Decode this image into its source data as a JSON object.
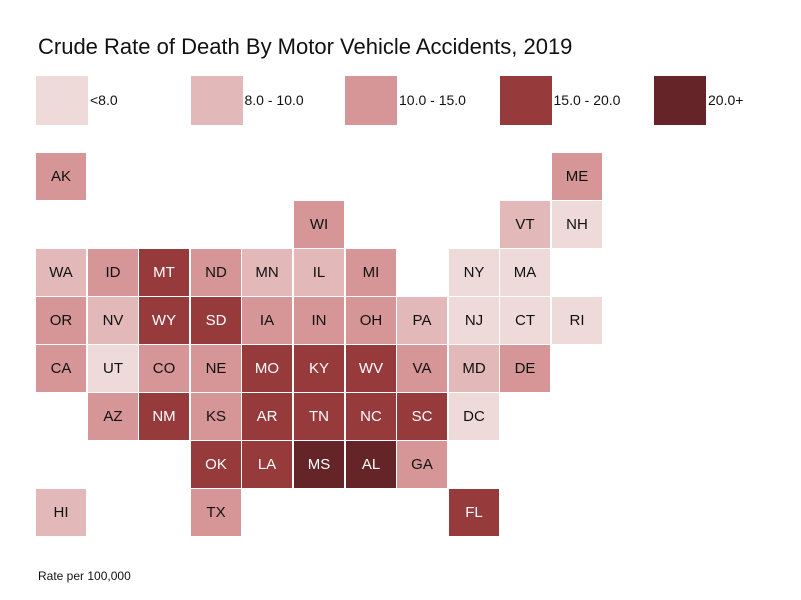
{
  "chart_data": {
    "type": "heatmap",
    "subtype": "tile-grid-map",
    "title": "Crude Rate of Death By Motor Vehicle Accidents, 2019",
    "note": "Rate per 100,000",
    "legend_position": "top",
    "bins": [
      {
        "id": "c1",
        "label": "<8.0",
        "color": "#eedad9",
        "text": "light"
      },
      {
        "id": "c2",
        "label": "8.0 - 10.0",
        "color": "#e2b8b8",
        "text": "light"
      },
      {
        "id": "c3",
        "label": "10.0 - 15.0",
        "color": "#d69596",
        "text": "light"
      },
      {
        "id": "c4",
        "label": "15.0 - 20.0",
        "color": "#963a3c",
        "text": "dark"
      },
      {
        "id": "c5",
        "label": "20.0+",
        "color": "#652528",
        "text": "dark"
      }
    ],
    "tiles": [
      {
        "state": "AK",
        "row": 0,
        "col": 0,
        "bin": "c3"
      },
      {
        "state": "ME",
        "row": 0,
        "col": 10,
        "bin": "c3"
      },
      {
        "state": "WI",
        "row": 1,
        "col": 5,
        "bin": "c3"
      },
      {
        "state": "VT",
        "row": 1,
        "col": 9,
        "bin": "c2"
      },
      {
        "state": "NH",
        "row": 1,
        "col": 10,
        "bin": "c1"
      },
      {
        "state": "WA",
        "row": 2,
        "col": 0,
        "bin": "c2"
      },
      {
        "state": "ID",
        "row": 2,
        "col": 1,
        "bin": "c3"
      },
      {
        "state": "MT",
        "row": 2,
        "col": 2,
        "bin": "c4"
      },
      {
        "state": "ND",
        "row": 2,
        "col": 3,
        "bin": "c3"
      },
      {
        "state": "MN",
        "row": 2,
        "col": 4,
        "bin": "c2"
      },
      {
        "state": "IL",
        "row": 2,
        "col": 5,
        "bin": "c2"
      },
      {
        "state": "MI",
        "row": 2,
        "col": 6,
        "bin": "c3"
      },
      {
        "state": "NY",
        "row": 2,
        "col": 8,
        "bin": "c1"
      },
      {
        "state": "MA",
        "row": 2,
        "col": 9,
        "bin": "c1"
      },
      {
        "state": "OR",
        "row": 3,
        "col": 0,
        "bin": "c3"
      },
      {
        "state": "NV",
        "row": 3,
        "col": 1,
        "bin": "c2"
      },
      {
        "state": "WY",
        "row": 3,
        "col": 2,
        "bin": "c4"
      },
      {
        "state": "SD",
        "row": 3,
        "col": 3,
        "bin": "c4"
      },
      {
        "state": "IA",
        "row": 3,
        "col": 4,
        "bin": "c3"
      },
      {
        "state": "IN",
        "row": 3,
        "col": 5,
        "bin": "c3"
      },
      {
        "state": "OH",
        "row": 3,
        "col": 6,
        "bin": "c3"
      },
      {
        "state": "PA",
        "row": 3,
        "col": 7,
        "bin": "c2"
      },
      {
        "state": "NJ",
        "row": 3,
        "col": 8,
        "bin": "c1"
      },
      {
        "state": "CT",
        "row": 3,
        "col": 9,
        "bin": "c1"
      },
      {
        "state": "RI",
        "row": 3,
        "col": 10,
        "bin": "c1"
      },
      {
        "state": "CA",
        "row": 4,
        "col": 0,
        "bin": "c3"
      },
      {
        "state": "UT",
        "row": 4,
        "col": 1,
        "bin": "c1"
      },
      {
        "state": "CO",
        "row": 4,
        "col": 2,
        "bin": "c3"
      },
      {
        "state": "NE",
        "row": 4,
        "col": 3,
        "bin": "c3"
      },
      {
        "state": "MO",
        "row": 4,
        "col": 4,
        "bin": "c4"
      },
      {
        "state": "KY",
        "row": 4,
        "col": 5,
        "bin": "c4"
      },
      {
        "state": "WV",
        "row": 4,
        "col": 6,
        "bin": "c4"
      },
      {
        "state": "VA",
        "row": 4,
        "col": 7,
        "bin": "c3"
      },
      {
        "state": "MD",
        "row": 4,
        "col": 8,
        "bin": "c2"
      },
      {
        "state": "DE",
        "row": 4,
        "col": 9,
        "bin": "c3"
      },
      {
        "state": "AZ",
        "row": 5,
        "col": 1,
        "bin": "c3"
      },
      {
        "state": "NM",
        "row": 5,
        "col": 2,
        "bin": "c4"
      },
      {
        "state": "KS",
        "row": 5,
        "col": 3,
        "bin": "c3"
      },
      {
        "state": "AR",
        "row": 5,
        "col": 4,
        "bin": "c4"
      },
      {
        "state": "TN",
        "row": 5,
        "col": 5,
        "bin": "c4"
      },
      {
        "state": "NC",
        "row": 5,
        "col": 6,
        "bin": "c4"
      },
      {
        "state": "SC",
        "row": 5,
        "col": 7,
        "bin": "c4"
      },
      {
        "state": "DC",
        "row": 5,
        "col": 8,
        "bin": "c1"
      },
      {
        "state": "OK",
        "row": 6,
        "col": 3,
        "bin": "c4"
      },
      {
        "state": "LA",
        "row": 6,
        "col": 4,
        "bin": "c4"
      },
      {
        "state": "MS",
        "row": 6,
        "col": 5,
        "bin": "c5"
      },
      {
        "state": "AL",
        "row": 6,
        "col": 6,
        "bin": "c5"
      },
      {
        "state": "GA",
        "row": 6,
        "col": 7,
        "bin": "c3"
      },
      {
        "state": "HI",
        "row": 7,
        "col": 0,
        "bin": "c2"
      },
      {
        "state": "TX",
        "row": 7,
        "col": 3,
        "bin": "c3"
      },
      {
        "state": "FL",
        "row": 7,
        "col": 8,
        "bin": "c4"
      }
    ]
  }
}
